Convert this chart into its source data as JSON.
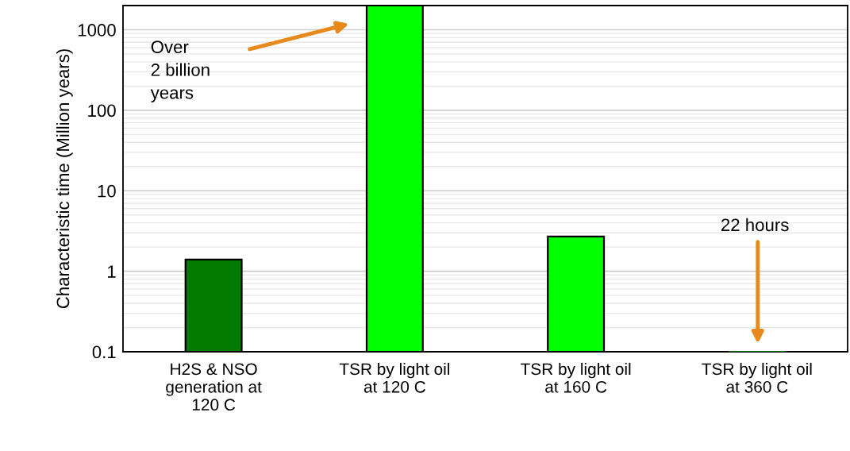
{
  "chart_data": {
    "type": "bar",
    "ylabel": "Characteristic time (Million years)",
    "categories": [
      "H2S & NSO\ngeneration at\n120 C",
      "TSR by light oil\nat 120 C",
      "TSR by light oil\nat 160 C",
      "TSR by light oil\nat 360 C"
    ],
    "values": [
      1.4,
      2000,
      2.7,
      0.1
    ],
    "colors": [
      "#007a00",
      "#00ff00",
      "#00ff00",
      "#007a00"
    ],
    "log": true,
    "ylim": [
      0.1,
      2000
    ],
    "yticks": [
      0.1,
      1,
      10,
      100,
      1000
    ],
    "grid": "y",
    "annotations": [
      "Over\n2 billion\nyears",
      "22 hours"
    ]
  }
}
